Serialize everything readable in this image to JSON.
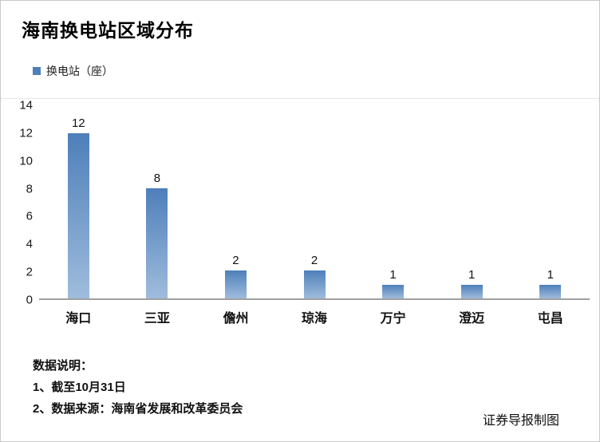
{
  "chart_data": {
    "type": "bar",
    "title": "海南换电站区域分布",
    "legend": "换电站（座）",
    "categories": [
      "海口",
      "三亚",
      "儋州",
      "琼海",
      "万宁",
      "澄迈",
      "屯昌"
    ],
    "values": [
      12,
      8,
      2,
      2,
      1,
      1,
      1
    ],
    "xlabel": "",
    "ylabel": "",
    "ylim": [
      0,
      14
    ],
    "yticks": [
      0,
      2,
      4,
      6,
      8,
      10,
      12,
      14
    ],
    "grid": false,
    "legend_position": "top-left",
    "bar_color_top": "#4e7fba",
    "bar_color_bottom": "#9fbcdc",
    "axis_color": "#a0a0a0"
  },
  "notes": {
    "heading": "数据说明：",
    "line1": "1、截至10月31日",
    "line2": "2、数据来源：海南省发展和改革委员会"
  },
  "credit": "证券导报制图"
}
